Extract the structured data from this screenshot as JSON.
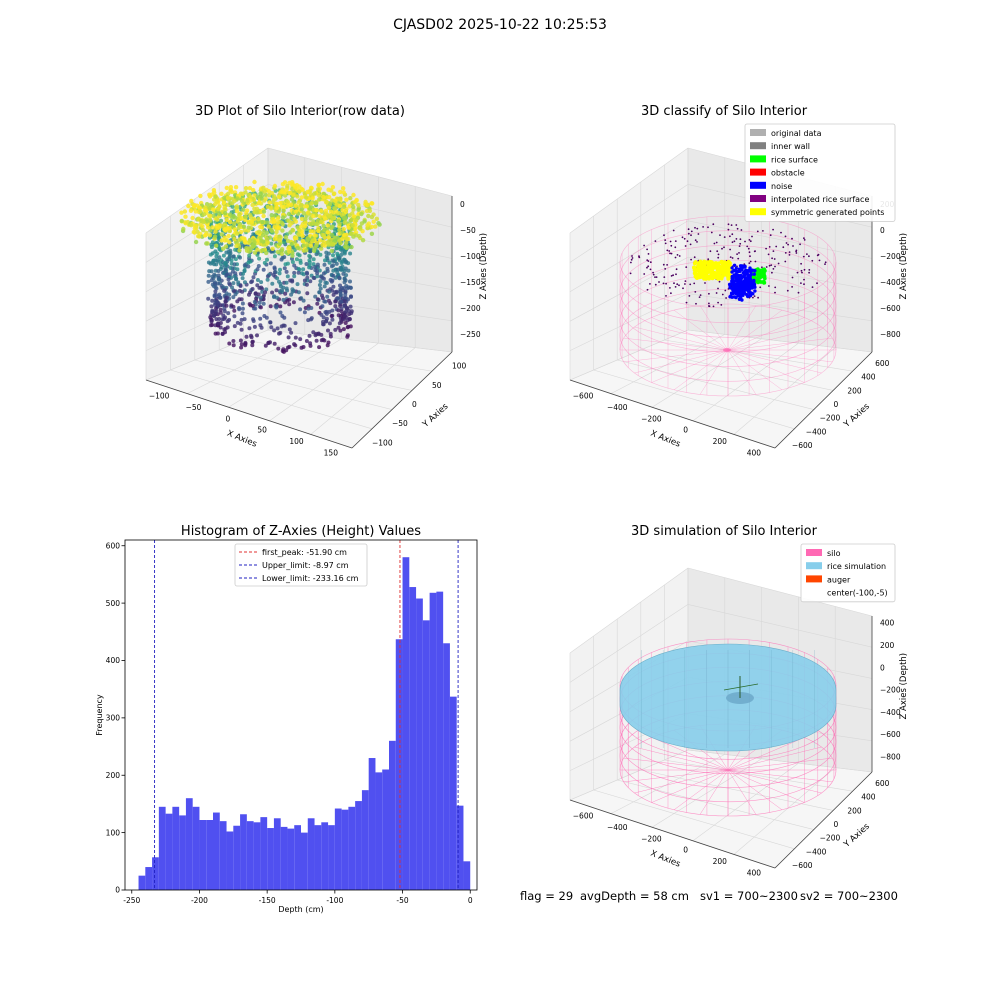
{
  "figure": {
    "title": "CJASD02 2025-10-22 10:25:53",
    "status": {
      "flag": "flag = 29",
      "avg_depth": "avgDepth = 58 cm",
      "sv1": "sv1 = 700~2300",
      "sv2": "sv2 = 700~2300"
    },
    "colors": {
      "hist_bar": "#5050f0",
      "first_peak": "#e03030",
      "limits": "#2020c0",
      "silo": "#ff69b4",
      "rice_simulation": "#87ceeb",
      "auger": "#ff4500"
    }
  },
  "chart_data": [
    {
      "type": "scatter",
      "projection": "3d",
      "title": "3D Plot of Silo Interior(row data)",
      "xlabel": "X Axies",
      "ylabel": "Y Axies",
      "zlabel": "Z Axies (Depth)",
      "x_ticks": [
        "−100",
        "−50",
        "0",
        "50",
        "100",
        "150"
      ],
      "y_ticks": [
        "−100",
        "−50",
        "0",
        "50",
        "100"
      ],
      "z_ticks": [
        "0",
        "−50",
        "−100",
        "−150",
        "−200",
        "−250"
      ],
      "xlim": [
        -110,
        160
      ],
      "ylim": [
        -110,
        110
      ],
      "zlim": [
        -260,
        5
      ],
      "colormap": "viridis",
      "description_data": {
        "surface_depth_range": [
          -80,
          -20
        ],
        "wall_depth_range": [
          -240,
          -80
        ]
      }
    },
    {
      "type": "scatter",
      "projection": "3d",
      "title": "3D classify of Silo Interior",
      "xlabel": "X Axies",
      "ylabel": "Y Axies",
      "zlabel": "Z Axies (Depth)",
      "x_ticks": [
        "−600",
        "−400",
        "−200",
        "0",
        "200",
        "400"
      ],
      "y_ticks": [
        "−600",
        "−400",
        "−200",
        "0",
        "200",
        "400",
        "600"
      ],
      "z_ticks": [
        "200",
        "0",
        "−200",
        "−400",
        "−600",
        "−800"
      ],
      "legend_position": "upper-right",
      "legend": [
        {
          "label": "original data",
          "color": "#b0b0b0"
        },
        {
          "label": "inner wall",
          "color": "#808080"
        },
        {
          "label": "rice surface",
          "color": "#00ff00"
        },
        {
          "label": "obstacle",
          "color": "#ff0000"
        },
        {
          "label": "noise",
          "color": "#0000ff"
        },
        {
          "label": "interpolated rice surface",
          "color": "#800080"
        },
        {
          "label": "symmetric generated points",
          "color": "#ffff00"
        }
      ]
    },
    {
      "type": "bar",
      "title": "Histogram of Z-Axies (Height) Values",
      "xlabel": "Depth (cm)",
      "ylabel": "Frequency",
      "xlim": [
        -255,
        5
      ],
      "ylim": [
        0,
        610
      ],
      "x_ticks": [
        -250,
        -200,
        -150,
        -100,
        -50,
        0
      ],
      "y_ticks": [
        0,
        100,
        200,
        300,
        400,
        500,
        600
      ],
      "bin_width": 5,
      "bin_start": -245,
      "values": [
        25,
        40,
        57,
        145,
        133,
        145,
        130,
        160,
        145,
        122,
        122,
        135,
        120,
        102,
        112,
        132,
        120,
        118,
        127,
        108,
        125,
        110,
        107,
        113,
        100,
        125,
        113,
        118,
        113,
        142,
        140,
        145,
        155,
        174,
        230,
        205,
        210,
        260,
        437,
        580,
        528,
        508,
        470,
        518,
        520,
        430,
        337,
        147,
        50
      ],
      "legend_position": "upper-center",
      "vlines": [
        {
          "x": -51.9,
          "label": "first_peak: -51.90 cm",
          "color": "#e03030"
        },
        {
          "x": -8.97,
          "label": "Upper_limit: -8.97 cm",
          "color": "#2020c0"
        },
        {
          "x": -233.16,
          "label": "Lower_limit: -233.16 cm",
          "color": "#2020c0"
        }
      ]
    },
    {
      "type": "area",
      "projection": "3d",
      "title": "3D simulation of Silo Interior",
      "xlabel": "X Axies",
      "ylabel": "Y Axies",
      "zlabel": "Z Axies (Depth)",
      "x_ticks": [
        "−600",
        "−400",
        "−200",
        "0",
        "200",
        "400"
      ],
      "y_ticks": [
        "−600",
        "−400",
        "−200",
        "0",
        "200",
        "400",
        "600"
      ],
      "z_ticks": [
        "400",
        "200",
        "0",
        "−200",
        "−400",
        "−600",
        "−800"
      ],
      "legend_position": "upper-right",
      "legend": [
        {
          "label": "silo",
          "color": "#ff69b4"
        },
        {
          "label": "rice simulation",
          "color": "#87ceeb"
        },
        {
          "label": "auger",
          "color": "#ff4500"
        },
        {
          "label": "center(-100,-5)",
          "color": ""
        }
      ]
    }
  ]
}
